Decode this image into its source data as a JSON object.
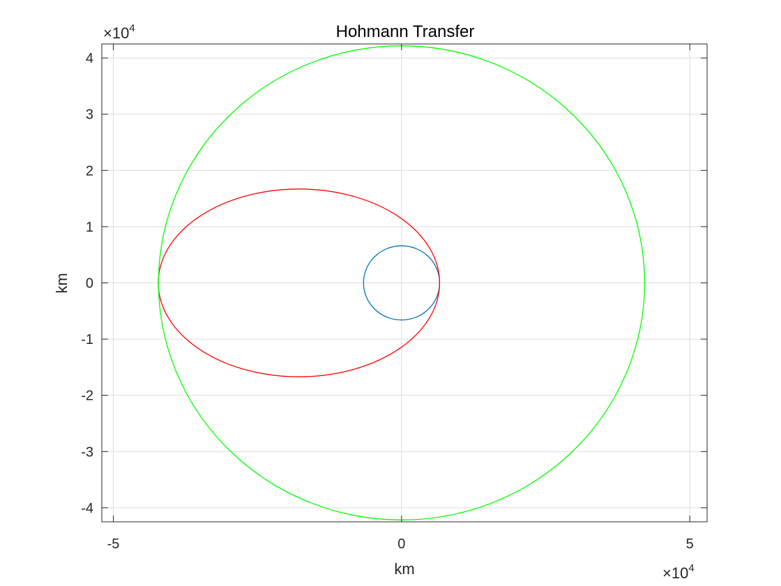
{
  "chart_data": {
    "type": "line",
    "title": "Hohmann Transfer",
    "xlabel": "km",
    "ylabel": "km",
    "xlim": [
      -52000,
      53000
    ],
    "ylim": [
      -42500,
      42500
    ],
    "grid": true,
    "exponent_x": {
      "prefix": "×10",
      "power": "4"
    },
    "exponent_y": {
      "prefix": "×10",
      "power": "4"
    },
    "xticks": [
      {
        "value": -50000,
        "label": "-5"
      },
      {
        "value": 0,
        "label": "0"
      },
      {
        "value": 50000,
        "label": "5"
      }
    ],
    "yticks": [
      {
        "value": -40000,
        "label": "-4"
      },
      {
        "value": -30000,
        "label": "-3"
      },
      {
        "value": -20000,
        "label": "-2"
      },
      {
        "value": -10000,
        "label": "-1"
      },
      {
        "value": 0,
        "label": "0"
      },
      {
        "value": 10000,
        "label": "1"
      },
      {
        "value": 20000,
        "label": "2"
      },
      {
        "value": 30000,
        "label": "3"
      },
      {
        "value": 40000,
        "label": "4"
      }
    ],
    "series": [
      {
        "kind": "circle",
        "center": [
          0,
          0
        ],
        "radius": 6600,
        "color": "#0072BD"
      },
      {
        "kind": "ellipse",
        "center": [
          -17800,
          0
        ],
        "semi_major": 24400,
        "semi_minor": 16700,
        "color": "#FF0000"
      },
      {
        "kind": "circle",
        "center": [
          0,
          0
        ],
        "radius": 42164,
        "color": "#00FF00"
      }
    ]
  }
}
